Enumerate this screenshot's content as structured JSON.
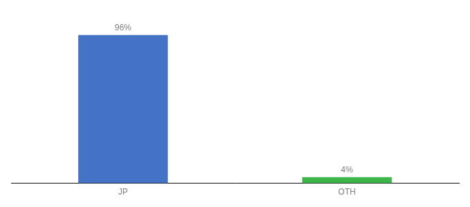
{
  "chart_data": {
    "type": "bar",
    "categories": [
      "JP",
      "OTH"
    ],
    "values": [
      96,
      4
    ],
    "value_labels": [
      "96%",
      "4%"
    ],
    "data_labels": true,
    "colors": [
      "#4472c4",
      "#3cb54a"
    ],
    "ylim": [
      0,
      108
    ],
    "grid": false,
    "tick_labels": "x"
  }
}
